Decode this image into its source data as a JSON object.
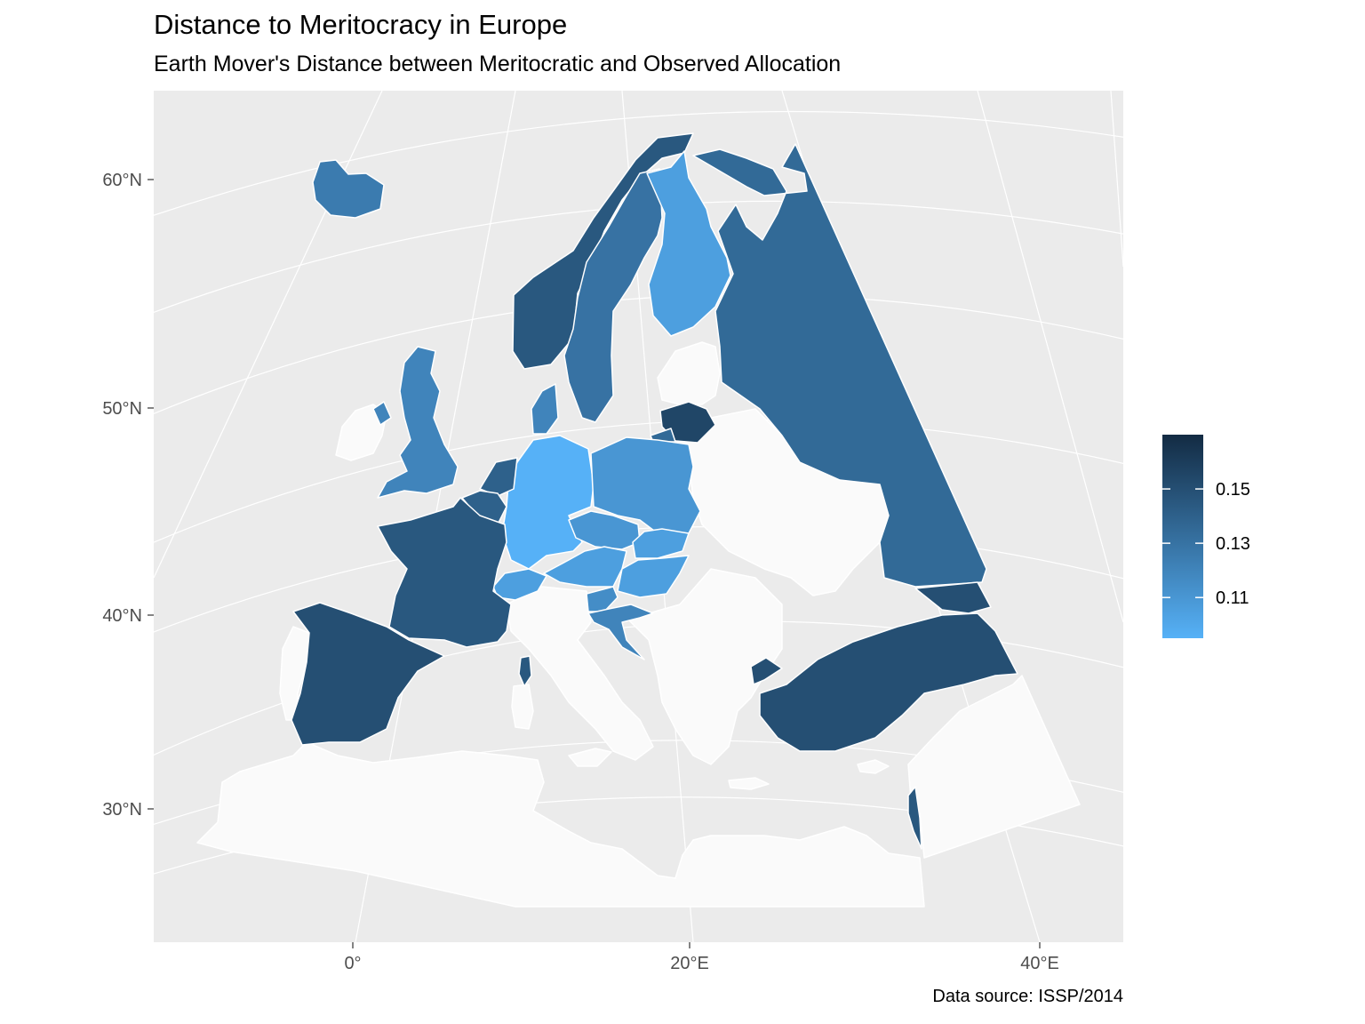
{
  "map": {
    "title": "Distance to Meritocracy in Europe",
    "subtitle": "Earth Mover's Distance between Meritocratic and Observed Allocation",
    "caption": "Data source: ISSP/2014",
    "latitude_labels": [
      "60°N",
      "50°N",
      "40°N",
      "30°N"
    ],
    "longitude_labels": [
      "0°",
      "20°E",
      "40°E"
    ]
  },
  "chart_data": {
    "type": "choropleth",
    "region": "Europe",
    "legend": {
      "placement": "right",
      "min": 0.095,
      "max": 0.17,
      "ticks": [
        {
          "value": 0.11,
          "label": "0.11"
        },
        {
          "value": 0.13,
          "label": "0.13"
        },
        {
          "value": 0.15,
          "label": "0.15"
        }
      ],
      "color_low": "#56B1F7",
      "color_high": "#132B43"
    },
    "no_data_color": "#FAFAFA",
    "panel_color": "#EBEBEB",
    "regions": [
      {
        "country": "Iceland",
        "value": 0.125
      },
      {
        "country": "Norway",
        "value": 0.145
      },
      {
        "country": "Sweden",
        "value": 0.13
      },
      {
        "country": "Finland",
        "value": 0.105
      },
      {
        "country": "Russia",
        "value": 0.135
      },
      {
        "country": "United Kingdom",
        "value": 0.12
      },
      {
        "country": "Ireland",
        "value": null
      },
      {
        "country": "Denmark",
        "value": 0.12
      },
      {
        "country": "Lithuania",
        "value": 0.155
      },
      {
        "country": "Germany",
        "value": 0.095
      },
      {
        "country": "Poland",
        "value": 0.11
      },
      {
        "country": "Netherlands",
        "value": 0.14
      },
      {
        "country": "Belgium",
        "value": 0.14
      },
      {
        "country": "France",
        "value": 0.145
      },
      {
        "country": "Czech Republic",
        "value": 0.11
      },
      {
        "country": "Slovakia",
        "value": 0.105
      },
      {
        "country": "Austria",
        "value": 0.105
      },
      {
        "country": "Switzerland",
        "value": 0.105
      },
      {
        "country": "Hungary",
        "value": 0.105
      },
      {
        "country": "Slovenia",
        "value": 0.115
      },
      {
        "country": "Croatia",
        "value": 0.12
      },
      {
        "country": "Spain",
        "value": 0.15
      },
      {
        "country": "Turkey",
        "value": 0.15
      },
      {
        "country": "Georgia",
        "value": 0.15
      },
      {
        "country": "Israel",
        "value": 0.145
      }
    ]
  }
}
